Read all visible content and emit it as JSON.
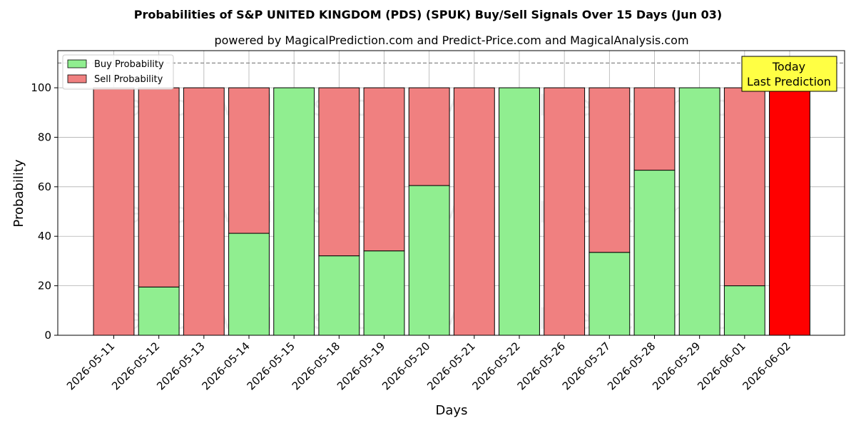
{
  "chart_data": {
    "type": "bar",
    "stacked": true,
    "title": "Probabilities of S&P UNITED KINGDOM (PDS) (SPUK) Buy/Sell Signals Over 15 Days (Jun 03)",
    "subtitle": "powered by MagicalPrediction.com and Predict-Price.com and MagicalAnalysis.com",
    "xlabel": "Days",
    "ylabel": "Probability",
    "ylim": [
      0,
      115
    ],
    "yticks": [
      0,
      20,
      40,
      60,
      80,
      100
    ],
    "reference_line": 110,
    "grid": true,
    "legend_position": "top-left",
    "categories": [
      "2026-05-11",
      "2026-05-12",
      "2026-05-13",
      "2026-05-14",
      "2026-05-15",
      "2026-05-18",
      "2026-05-19",
      "2026-05-20",
      "2026-05-21",
      "2026-05-22",
      "2026-05-26",
      "2026-05-27",
      "2026-05-28",
      "2026-05-29",
      "2026-06-01",
      "2026-06-02"
    ],
    "series": [
      {
        "name": "Buy Probability",
        "color": "#90ee90",
        "values": [
          0,
          19.5,
          0,
          41.2,
          100,
          32.1,
          34.1,
          60.5,
          0,
          100,
          0,
          33.5,
          66.7,
          100,
          20,
          0
        ]
      },
      {
        "name": "Sell Probability",
        "color": "#f08080",
        "values": [
          100,
          80.5,
          100,
          58.8,
          0,
          67.9,
          65.9,
          39.5,
          100,
          0,
          100,
          66.5,
          33.3,
          0,
          80,
          100
        ]
      }
    ],
    "highlight": {
      "index": 15,
      "color": "#ff0000"
    },
    "annotation": {
      "lines": [
        "Today",
        "Last Prediction"
      ],
      "color": "#ffff44"
    },
    "watermarks": [
      "MagicalAnalysis.com",
      "MagicalPrediction.com"
    ]
  }
}
